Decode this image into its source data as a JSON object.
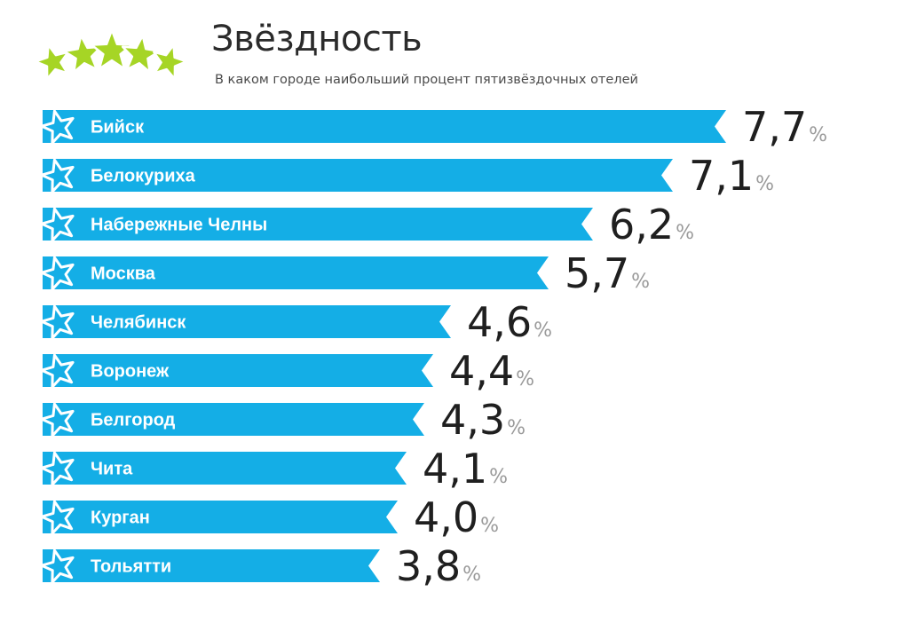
{
  "header": {
    "title": "Звёздность",
    "subtitle": "В каком городе наибольший процент пятизвёздочных отелей"
  },
  "colors": {
    "bar": "#14aee6",
    "logo": "#a6d525"
  },
  "icons": {
    "logo": "five-stars-logo-icon",
    "row": "star-icon"
  },
  "chart_data": {
    "type": "bar",
    "orientation": "horizontal",
    "categories": [
      "Бийск",
      "Белокуриха",
      "Набережные Челны",
      "Москва",
      "Челябинск",
      "Воронеж",
      "Белгород",
      "Чита",
      "Курган",
      "Тольятти"
    ],
    "values": [
      7.7,
      7.1,
      6.2,
      5.7,
      4.6,
      4.4,
      4.3,
      4.1,
      4.0,
      3.8
    ],
    "value_labels": [
      "7,7",
      "7,1",
      "6,2",
      "5,7",
      "4,6",
      "4,4",
      "4,3",
      "4,1",
      "4,0",
      "3,8"
    ],
    "unit": "%",
    "title": "",
    "xlabel": "",
    "ylabel": "",
    "legend": "none",
    "grid": false
  }
}
